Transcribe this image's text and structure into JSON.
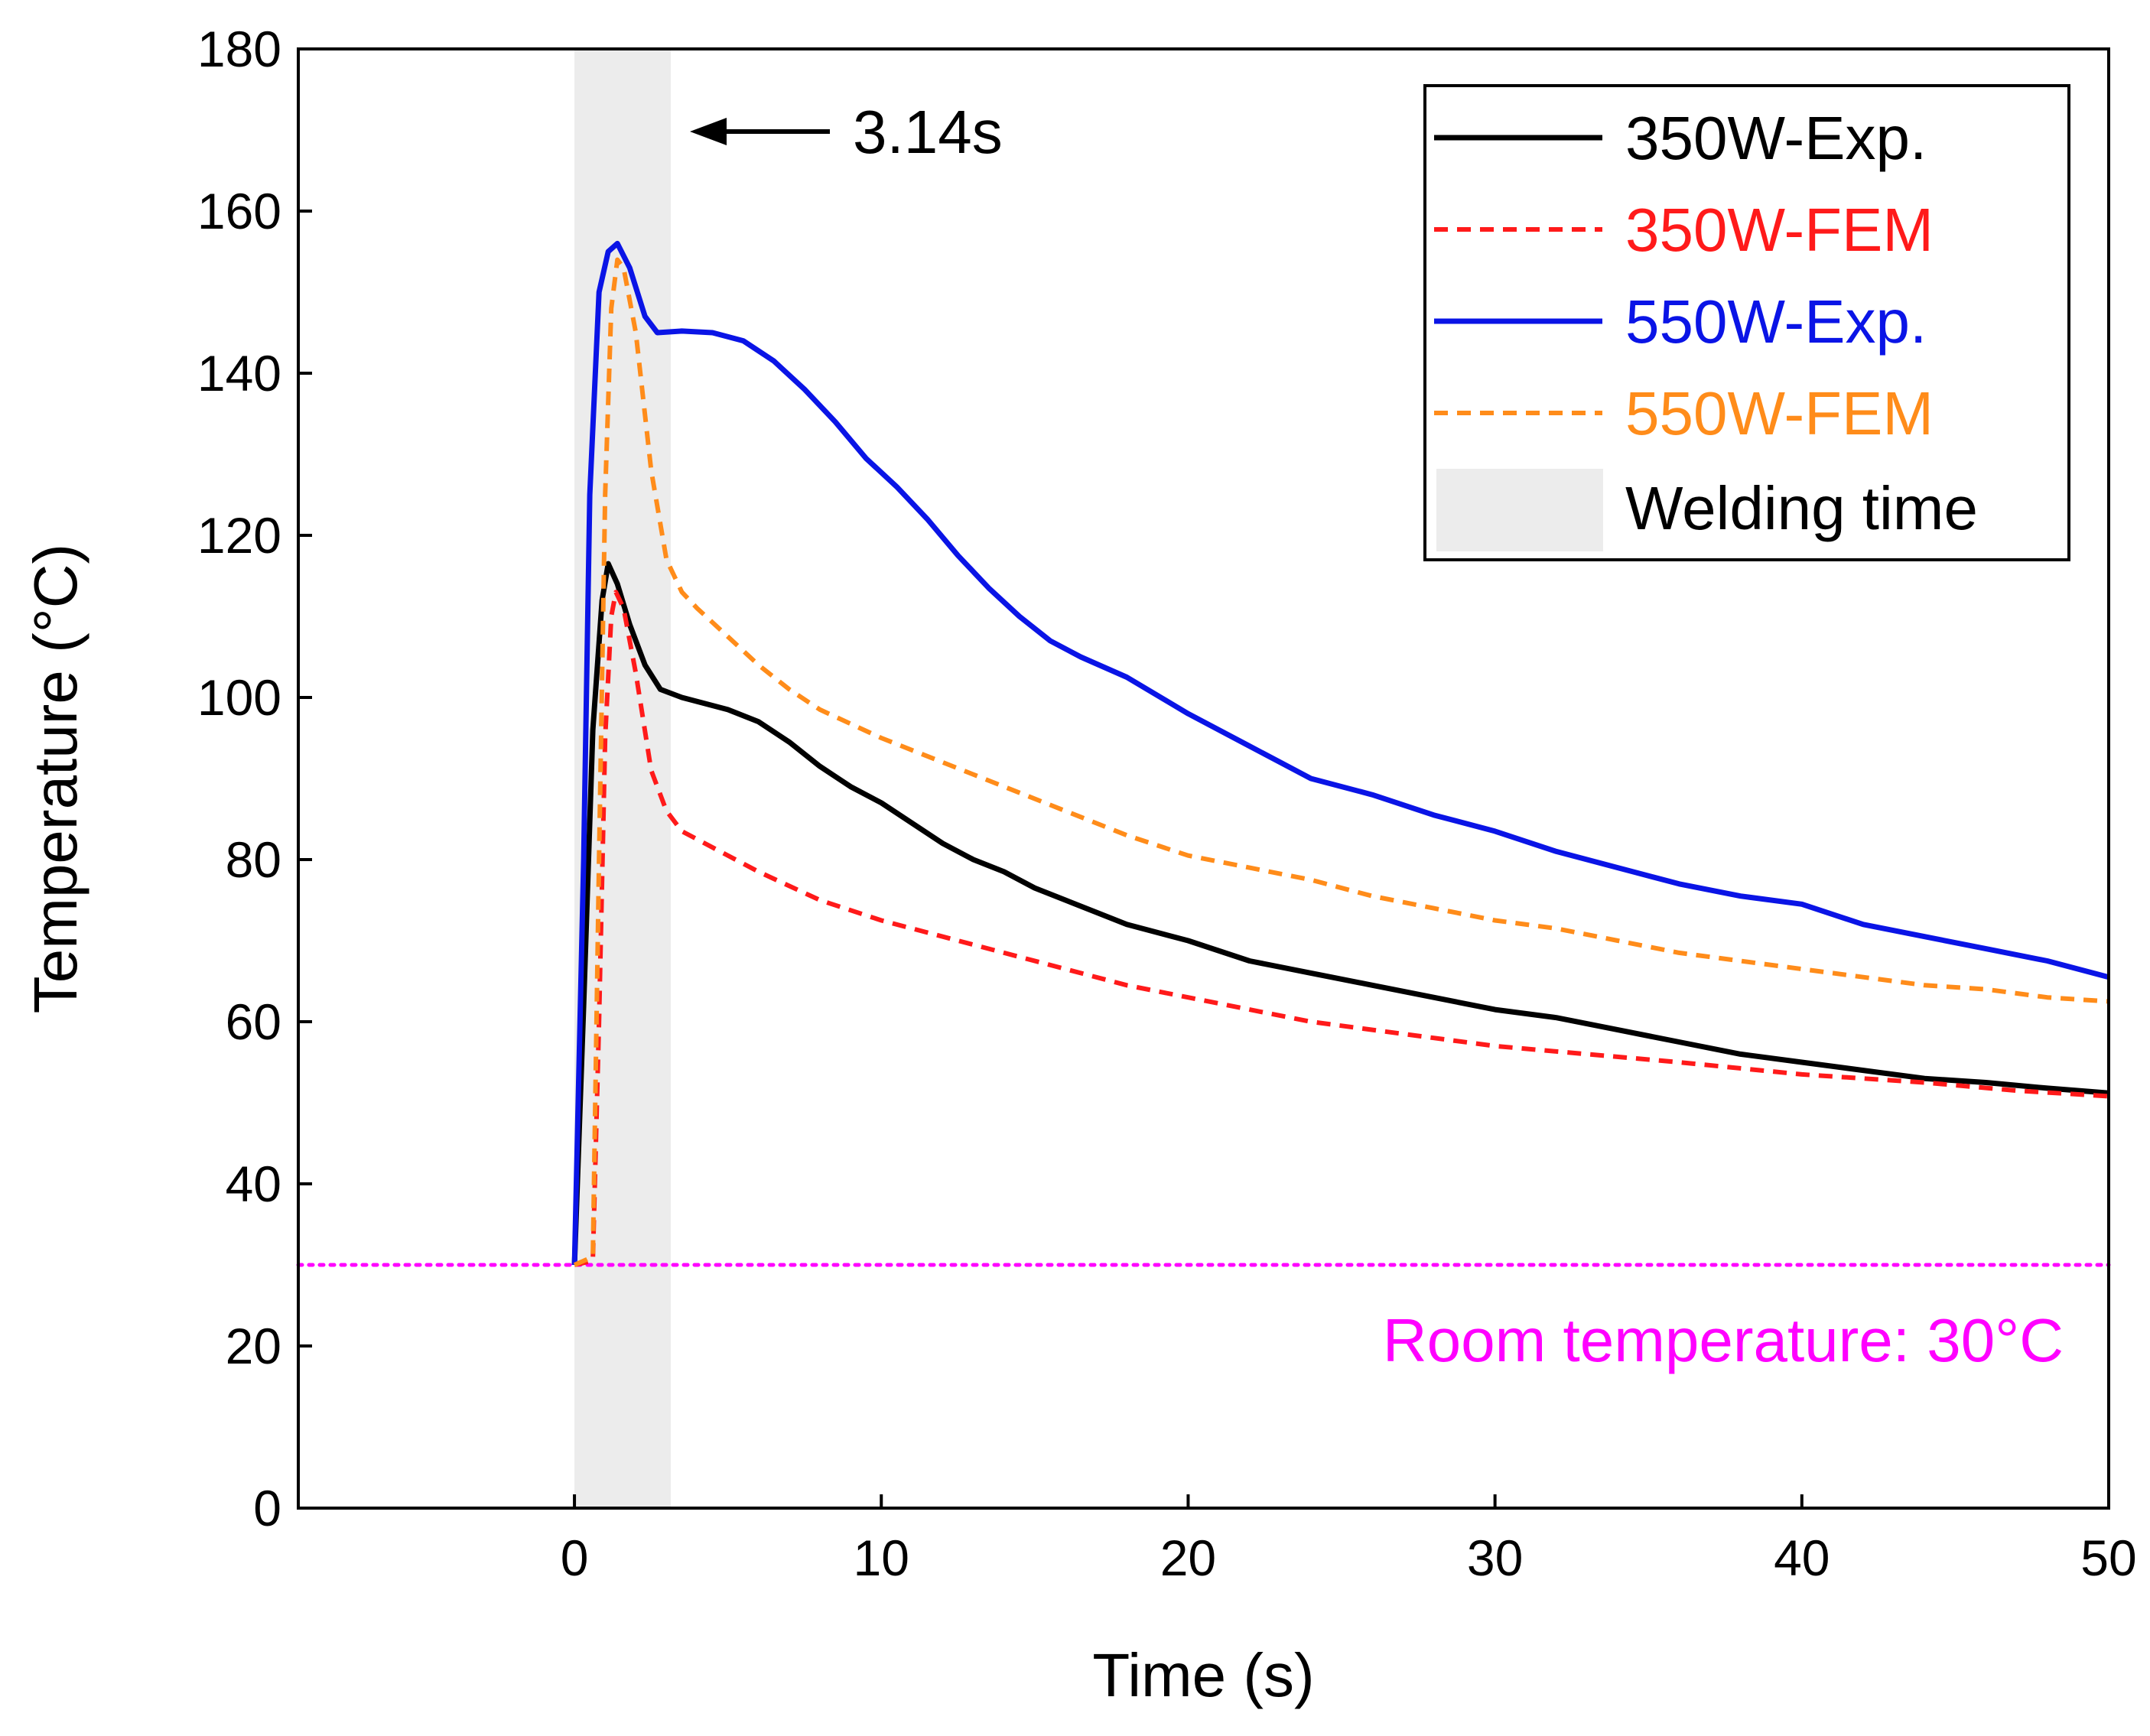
{
  "chart_data": {
    "type": "line",
    "title": "",
    "xlabel": "Time (s)",
    "ylabel": "Temperature (°C)",
    "xlim": [
      -9,
      50
    ],
    "ylim": [
      0,
      180
    ],
    "xticks": [
      0,
      10,
      20,
      30,
      40,
      50
    ],
    "yticks": [
      0,
      20,
      40,
      60,
      80,
      100,
      120,
      140,
      160,
      180
    ],
    "grid": false,
    "legend_position": "top-right",
    "welding_time": {
      "start": 0,
      "end": 3.14,
      "label": "Welding time",
      "annotation": "3.14s",
      "color": "#ececec"
    },
    "room_temperature": {
      "value": 30,
      "label": "Room temperature: 30°C",
      "color": "#ff00ff"
    },
    "series": [
      {
        "name": "350W-Exp.",
        "color": "#000000",
        "style": "solid",
        "points": [
          [
            0,
            30
          ],
          [
            0.3,
            62
          ],
          [
            0.6,
            96
          ],
          [
            0.9,
            112
          ],
          [
            1.1,
            116.5
          ],
          [
            1.4,
            114
          ],
          [
            1.8,
            109
          ],
          [
            2.3,
            104
          ],
          [
            2.8,
            101
          ],
          [
            3.5,
            100
          ],
          [
            5,
            98.5
          ],
          [
            6,
            97
          ],
          [
            7,
            94.5
          ],
          [
            8,
            91.5
          ],
          [
            9,
            89
          ],
          [
            10,
            87
          ],
          [
            11,
            84.5
          ],
          [
            12,
            82
          ],
          [
            13,
            80
          ],
          [
            14,
            78.5
          ],
          [
            15,
            76.5
          ],
          [
            16,
            75
          ],
          [
            17,
            73.5
          ],
          [
            18,
            72
          ],
          [
            20,
            70
          ],
          [
            22,
            67.5
          ],
          [
            24,
            66
          ],
          [
            26,
            64.5
          ],
          [
            28,
            63
          ],
          [
            30,
            61.5
          ],
          [
            32,
            60.5
          ],
          [
            34,
            59
          ],
          [
            36,
            57.5
          ],
          [
            38,
            56
          ],
          [
            40,
            55
          ],
          [
            42,
            54
          ],
          [
            44,
            53
          ],
          [
            46,
            52.5
          ],
          [
            48,
            51.8
          ],
          [
            50,
            51.2
          ]
        ]
      },
      {
        "name": "350W-FEM",
        "color": "#ff1a1a",
        "style": "dashed",
        "points": [
          [
            0,
            30
          ],
          [
            0.6,
            30.5
          ],
          [
            0.8,
            60
          ],
          [
            1,
            95
          ],
          [
            1.2,
            110
          ],
          [
            1.35,
            113
          ],
          [
            1.6,
            111
          ],
          [
            2,
            103
          ],
          [
            2.5,
            91
          ],
          [
            3,
            86
          ],
          [
            3.5,
            83.5
          ],
          [
            4,
            82.5
          ],
          [
            6,
            78.5
          ],
          [
            8,
            75
          ],
          [
            10,
            72.5
          ],
          [
            12,
            70.5
          ],
          [
            14,
            68.5
          ],
          [
            16,
            66.5
          ],
          [
            18,
            64.5
          ],
          [
            20,
            63
          ],
          [
            22,
            61.5
          ],
          [
            24,
            60
          ],
          [
            26,
            59
          ],
          [
            28,
            58
          ],
          [
            30,
            57
          ],
          [
            33,
            56
          ],
          [
            36,
            55
          ],
          [
            40,
            53.5
          ],
          [
            44,
            52.5
          ],
          [
            47,
            51.5
          ],
          [
            50,
            50.8
          ]
        ]
      },
      {
        "name": "550W-Exp.",
        "color": "#0a14e6",
        "style": "solid",
        "points": [
          [
            0,
            30
          ],
          [
            0.3,
            80
          ],
          [
            0.5,
            125
          ],
          [
            0.8,
            150
          ],
          [
            1.1,
            155
          ],
          [
            1.4,
            156
          ],
          [
            1.8,
            153
          ],
          [
            2.3,
            147
          ],
          [
            2.7,
            145
          ],
          [
            3.5,
            145.2
          ],
          [
            4.5,
            145
          ],
          [
            5.5,
            144
          ],
          [
            6.5,
            141.5
          ],
          [
            7.5,
            138
          ],
          [
            8.5,
            134
          ],
          [
            9.5,
            129.5
          ],
          [
            10.5,
            126
          ],
          [
            11.5,
            122
          ],
          [
            12.5,
            117.5
          ],
          [
            13.5,
            113.5
          ],
          [
            14.5,
            110
          ],
          [
            15.5,
            107
          ],
          [
            16.5,
            105
          ],
          [
            18,
            102.5
          ],
          [
            20,
            98
          ],
          [
            22,
            94
          ],
          [
            24,
            90
          ],
          [
            26,
            88
          ],
          [
            28,
            85.5
          ],
          [
            30,
            83.5
          ],
          [
            32,
            81
          ],
          [
            34,
            79
          ],
          [
            36,
            77
          ],
          [
            38,
            75.5
          ],
          [
            40,
            74.5
          ],
          [
            42,
            72
          ],
          [
            44,
            70.5
          ],
          [
            46,
            69
          ],
          [
            48,
            67.5
          ],
          [
            50,
            65.5
          ]
        ]
      },
      {
        "name": "550W-FEM",
        "color": "#ff8c1a",
        "style": "dashed",
        "points": [
          [
            0,
            30
          ],
          [
            0.6,
            31
          ],
          [
            0.8,
            80
          ],
          [
            1,
            125
          ],
          [
            1.2,
            148
          ],
          [
            1.4,
            154
          ],
          [
            1.6,
            153
          ],
          [
            2,
            145
          ],
          [
            2.5,
            128
          ],
          [
            3,
            117
          ],
          [
            3.5,
            113
          ],
          [
            4,
            111
          ],
          [
            5,
            107.5
          ],
          [
            6,
            104
          ],
          [
            7,
            101
          ],
          [
            8,
            98.5
          ],
          [
            10,
            95
          ],
          [
            12,
            92
          ],
          [
            14,
            89
          ],
          [
            16,
            86
          ],
          [
            18,
            83
          ],
          [
            20,
            80.5
          ],
          [
            22,
            79
          ],
          [
            24,
            77.5
          ],
          [
            26,
            75.5
          ],
          [
            28,
            74
          ],
          [
            30,
            72.5
          ],
          [
            32,
            71.5
          ],
          [
            34,
            70
          ],
          [
            36,
            68.5
          ],
          [
            38,
            67.5
          ],
          [
            40,
            66.5
          ],
          [
            42,
            65.5
          ],
          [
            44,
            64.5
          ],
          [
            46,
            64
          ],
          [
            48,
            63
          ],
          [
            50,
            62.5
          ]
        ]
      }
    ]
  }
}
